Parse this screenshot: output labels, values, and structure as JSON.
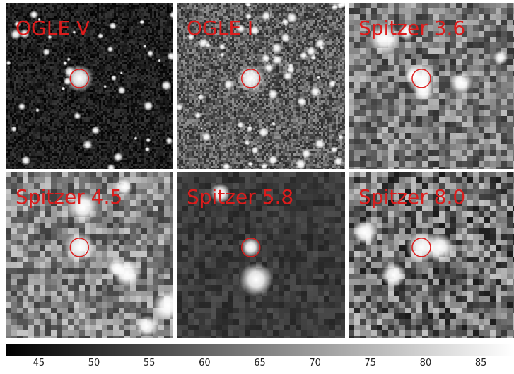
{
  "panels": [
    {
      "label": "OGLE V",
      "style": "ogle",
      "density": 42,
      "seed": 3,
      "bg": 30,
      "noise": 28
    },
    {
      "label": "OGLE I",
      "style": "ogle",
      "density": 55,
      "seed": 7,
      "bg": 95,
      "noise": 55
    },
    {
      "label": "Spitzer 3.6",
      "style": "pixel",
      "density": 6,
      "seed": 11,
      "bg": 120,
      "noise": 70
    },
    {
      "label": "Spitzer 4.5",
      "style": "pixel",
      "density": 6,
      "seed": 17,
      "bg": 130,
      "noise": 70
    },
    {
      "label": "Spitzer 5.8",
      "style": "pixel",
      "density": 2,
      "seed": 23,
      "bg": 58,
      "noise": 22
    },
    {
      "label": "Spitzer 8.0",
      "style": "pixel",
      "density": 3,
      "seed": 29,
      "bg": 110,
      "noise": 85
    }
  ],
  "colorbar": {
    "min": 42,
    "max": 88,
    "ticks": [
      "45",
      "50",
      "55",
      "60",
      "65",
      "70",
      "75",
      "80",
      "85"
    ]
  },
  "colors": {
    "marker": "#dd1c1c",
    "label": "#dd1c1c"
  }
}
